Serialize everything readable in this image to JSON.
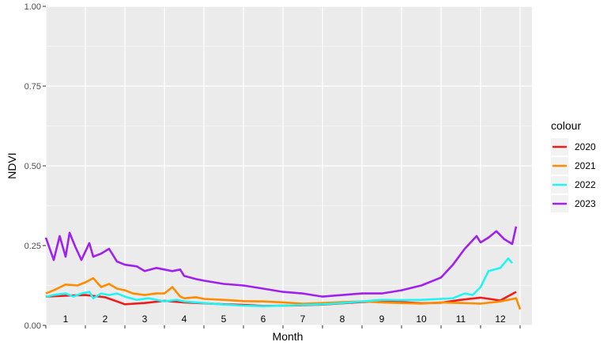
{
  "chart_data": {
    "type": "line",
    "xlabel": "Month",
    "ylabel": "NDVI",
    "xlim": [
      0,
      12.3
    ],
    "ylim": [
      0,
      1
    ],
    "yticks": [
      0,
      0.25,
      0.5,
      0.75,
      1
    ],
    "ytick_labels": [
      "0.00",
      "0.25",
      "0.50",
      "0.75",
      "1.00"
    ],
    "month_labels": [
      "1",
      "2",
      "3",
      "4",
      "5",
      "6",
      "7",
      "8",
      "9",
      "10",
      "11",
      "12"
    ],
    "grid": true,
    "legend_title": "colour",
    "legend_position": "right",
    "series": [
      {
        "name": "2020",
        "color": "#ee1c1c",
        "x": [
          0.0,
          0.5,
          1.0,
          1.5,
          2.0,
          2.5,
          3.0,
          3.5,
          4.0,
          4.5,
          5.0,
          5.5,
          6.0,
          6.5,
          7.0,
          7.5,
          8.0,
          8.5,
          9.0,
          9.5,
          10.0,
          10.5,
          11.0,
          11.5,
          11.9
        ],
        "y": [
          0.09,
          0.093,
          0.095,
          0.088,
          0.066,
          0.07,
          0.077,
          0.072,
          0.069,
          0.066,
          0.064,
          0.061,
          0.062,
          0.063,
          0.065,
          0.069,
          0.073,
          0.075,
          0.073,
          0.069,
          0.071,
          0.08,
          0.087,
          0.078,
          0.105
        ]
      },
      {
        "name": "2021",
        "color": "#ff8c00",
        "x": [
          0.0,
          0.2,
          0.5,
          0.8,
          1.0,
          1.2,
          1.4,
          1.6,
          1.8,
          2.0,
          2.2,
          2.5,
          2.8,
          3.0,
          3.2,
          3.4,
          3.5,
          3.8,
          4.0,
          4.5,
          5.0,
          5.5,
          6.0,
          6.5,
          7.0,
          7.5,
          8.0,
          8.5,
          9.0,
          9.5,
          10.0,
          10.5,
          11.0,
          11.5,
          11.9,
          12.0
        ],
        "y": [
          0.1,
          0.11,
          0.128,
          0.125,
          0.135,
          0.148,
          0.12,
          0.13,
          0.115,
          0.11,
          0.1,
          0.095,
          0.1,
          0.1,
          0.12,
          0.09,
          0.085,
          0.088,
          0.083,
          0.08,
          0.076,
          0.075,
          0.072,
          0.068,
          0.07,
          0.073,
          0.075,
          0.072,
          0.07,
          0.068,
          0.072,
          0.07,
          0.068,
          0.075,
          0.085,
          0.05
        ]
      },
      {
        "name": "2022",
        "color": "#1ff5f5",
        "x": [
          0.0,
          0.2,
          0.5,
          0.7,
          0.9,
          1.1,
          1.2,
          1.4,
          1.6,
          1.8,
          2.0,
          2.3,
          2.6,
          3.0,
          3.3,
          3.5,
          4.0,
          4.5,
          5.0,
          5.5,
          6.0,
          6.5,
          7.0,
          7.5,
          8.0,
          8.5,
          9.0,
          9.5,
          10.0,
          10.3,
          10.6,
          10.8,
          11.0,
          11.2,
          11.5,
          11.7,
          11.8
        ],
        "y": [
          0.09,
          0.095,
          0.1,
          0.09,
          0.1,
          0.105,
          0.085,
          0.1,
          0.095,
          0.1,
          0.09,
          0.08,
          0.085,
          0.075,
          0.08,
          0.075,
          0.07,
          0.065,
          0.062,
          0.06,
          0.062,
          0.064,
          0.066,
          0.07,
          0.075,
          0.08,
          0.079,
          0.08,
          0.083,
          0.085,
          0.1,
          0.095,
          0.12,
          0.17,
          0.18,
          0.21,
          0.195
        ]
      },
      {
        "name": "2023",
        "color": "#a020f0",
        "x": [
          0.0,
          0.2,
          0.35,
          0.5,
          0.6,
          0.75,
          0.9,
          1.1,
          1.2,
          1.4,
          1.6,
          1.8,
          2.0,
          2.3,
          2.5,
          2.8,
          3.0,
          3.2,
          3.4,
          3.5,
          3.8,
          4.0,
          4.5,
          5.0,
          5.5,
          6.0,
          6.5,
          7.0,
          7.5,
          8.0,
          8.5,
          9.0,
          9.5,
          10.0,
          10.3,
          10.6,
          10.9,
          11.0,
          11.2,
          11.4,
          11.6,
          11.8,
          11.9
        ],
        "y": [
          0.275,
          0.205,
          0.28,
          0.215,
          0.29,
          0.245,
          0.205,
          0.258,
          0.215,
          0.225,
          0.24,
          0.2,
          0.19,
          0.185,
          0.17,
          0.18,
          0.175,
          0.17,
          0.175,
          0.155,
          0.145,
          0.14,
          0.13,
          0.125,
          0.115,
          0.105,
          0.1,
          0.09,
          0.095,
          0.1,
          0.1,
          0.11,
          0.125,
          0.15,
          0.19,
          0.24,
          0.28,
          0.26,
          0.275,
          0.295,
          0.27,
          0.255,
          0.31
        ]
      }
    ]
  }
}
